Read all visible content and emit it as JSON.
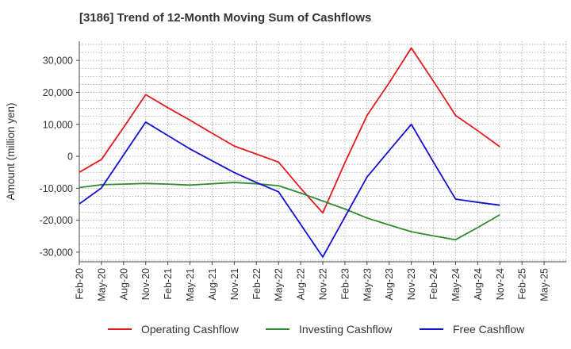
{
  "chart_data": {
    "type": "line",
    "title": "[3186]  Trend of 12-Month Moving Sum of Cashflows",
    "xlabel": "",
    "ylabel": "Amount (million yen)",
    "categories": [
      "Feb-20",
      "May-20",
      "Aug-20",
      "Nov-20",
      "Feb-21",
      "May-21",
      "Aug-21",
      "Nov-21",
      "Feb-22",
      "May-22",
      "Aug-22",
      "Nov-22",
      "Feb-23",
      "May-23",
      "Aug-23",
      "Nov-23",
      "Feb-24",
      "May-24",
      "Aug-24",
      "Nov-24",
      "Feb-25",
      "May-25"
    ],
    "yticks": [
      30000,
      20000,
      10000,
      0,
      -10000,
      -20000,
      -30000
    ],
    "ytick_labels": [
      "30,000",
      "20,000",
      "10,000",
      "0",
      "-10,000",
      "-20,000",
      "-30,000"
    ],
    "ylim": [
      -33000,
      36000
    ],
    "grid": true,
    "legend_position": "bottom",
    "series": [
      {
        "name": "Operating Cashflow",
        "color": "#e31a1c",
        "values": [
          -5000,
          -1000,
          9000,
          19300,
          15200,
          11300,
          7200,
          3200,
          700,
          -1800,
          -10000,
          -17700,
          -2000,
          12800,
          23000,
          33900,
          23500,
          12800,
          8000,
          3000,
          null,
          null
        ]
      },
      {
        "name": "Investing Cashflow",
        "color": "#2e8b2e",
        "values": [
          -9800,
          -8900,
          -8700,
          -8500,
          -8700,
          -9000,
          -8600,
          -8200,
          -8600,
          -9200,
          -11500,
          -14000,
          -16500,
          -19300,
          -21500,
          -23600,
          -24900,
          -26100,
          -22300,
          -18300,
          null,
          null
        ]
      },
      {
        "name": "Free Cashflow",
        "color": "#1010d0",
        "values": [
          -14900,
          -9900,
          400,
          10700,
          6500,
          2300,
          -1400,
          -5100,
          -8200,
          -11100,
          -21300,
          -31500,
          -19000,
          -6500,
          1800,
          10000,
          -1800,
          -13400,
          -14400,
          -15300,
          null,
          null
        ]
      }
    ]
  }
}
